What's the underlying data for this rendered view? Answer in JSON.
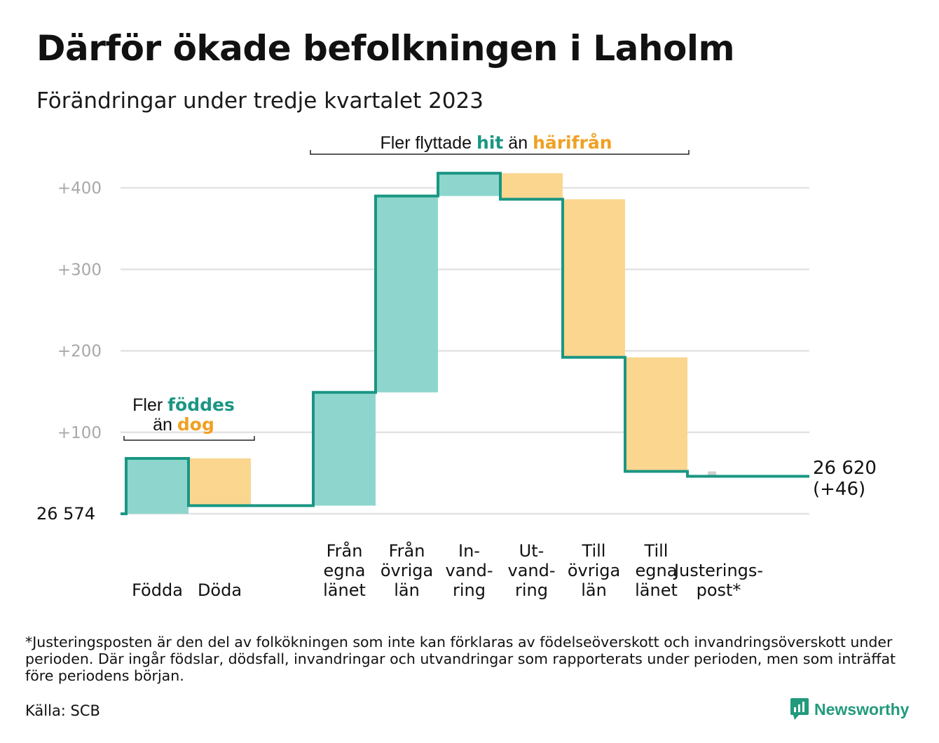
{
  "title": "Därför ökade befolkningen i Laholm",
  "subtitle": "Förändringar under tredje kvartalet 2023",
  "footnote": "*Justeringsposten är den del av folkökningen som inte kan förklaras av födelseöverskott och invandringsöverskott under perioden. Där ingår födslar, dödsfall, invandringar och utvandringar som rapporterats under perioden, men som inträffat före periodens början.",
  "source": "Källa: SCB",
  "brand": "Newsworthy",
  "colors": {
    "positive": "#8ed6cd",
    "negative": "#fad68f",
    "line": "#1a9683",
    "adjustment": "#cfcfcf",
    "accent_orange": "#f0a023",
    "grid": "#e3e3e3",
    "tick": "#a8a8a8"
  },
  "chart_data": {
    "type": "waterfall",
    "start_value": 26574,
    "start_label": "26 574",
    "end_label": [
      "26 620",
      "(+46)"
    ],
    "y_ticks": [
      "+100",
      "+200",
      "+300",
      "+400"
    ],
    "y_range": [
      0,
      420
    ],
    "categories": [
      {
        "label": [
          "Födda"
        ],
        "kind": "positive",
        "from": 0,
        "to": 68
      },
      {
        "label": [
          "Döda"
        ],
        "kind": "negative",
        "from": 68,
        "to": 10
      },
      {
        "label": [],
        "kind": "flat",
        "from": 10,
        "to": 10
      },
      {
        "label": [
          "Från",
          "egna",
          "länet"
        ],
        "kind": "positive",
        "from": 10,
        "to": 149
      },
      {
        "label": [
          "Från",
          "övriga",
          "län"
        ],
        "kind": "positive",
        "from": 149,
        "to": 390
      },
      {
        "label": [
          "In-",
          "vand-",
          "ring"
        ],
        "kind": "positive",
        "from": 390,
        "to": 418
      },
      {
        "label": [
          "Ut-",
          "vand-",
          "ring"
        ],
        "kind": "negative",
        "from": 418,
        "to": 386
      },
      {
        "label": [
          "Till",
          "övriga",
          "län"
        ],
        "kind": "negative",
        "from": 386,
        "to": 192
      },
      {
        "label": [
          "Till",
          "egna",
          "länet"
        ],
        "kind": "negative",
        "from": 192,
        "to": 52
      },
      {
        "label": [
          "Justerings-",
          "post*"
        ],
        "kind": "adjustment",
        "from": 52,
        "to": 46
      }
    ],
    "annotations": [
      {
        "parts": [
          {
            "text": "Fler ",
            "style": "plain"
          },
          {
            "text": "föddes",
            "style": "positive"
          }
        ],
        "parts2": [
          {
            "text": "än ",
            "style": "plain"
          },
          {
            "text": "dog",
            "style": "negative"
          }
        ]
      },
      {
        "parts": [
          {
            "text": "Fler flyttade ",
            "style": "plain"
          },
          {
            "text": "hit",
            "style": "positive"
          },
          {
            "text": " än ",
            "style": "plain"
          },
          {
            "text": "härifrån",
            "style": "negative"
          }
        ]
      }
    ]
  }
}
